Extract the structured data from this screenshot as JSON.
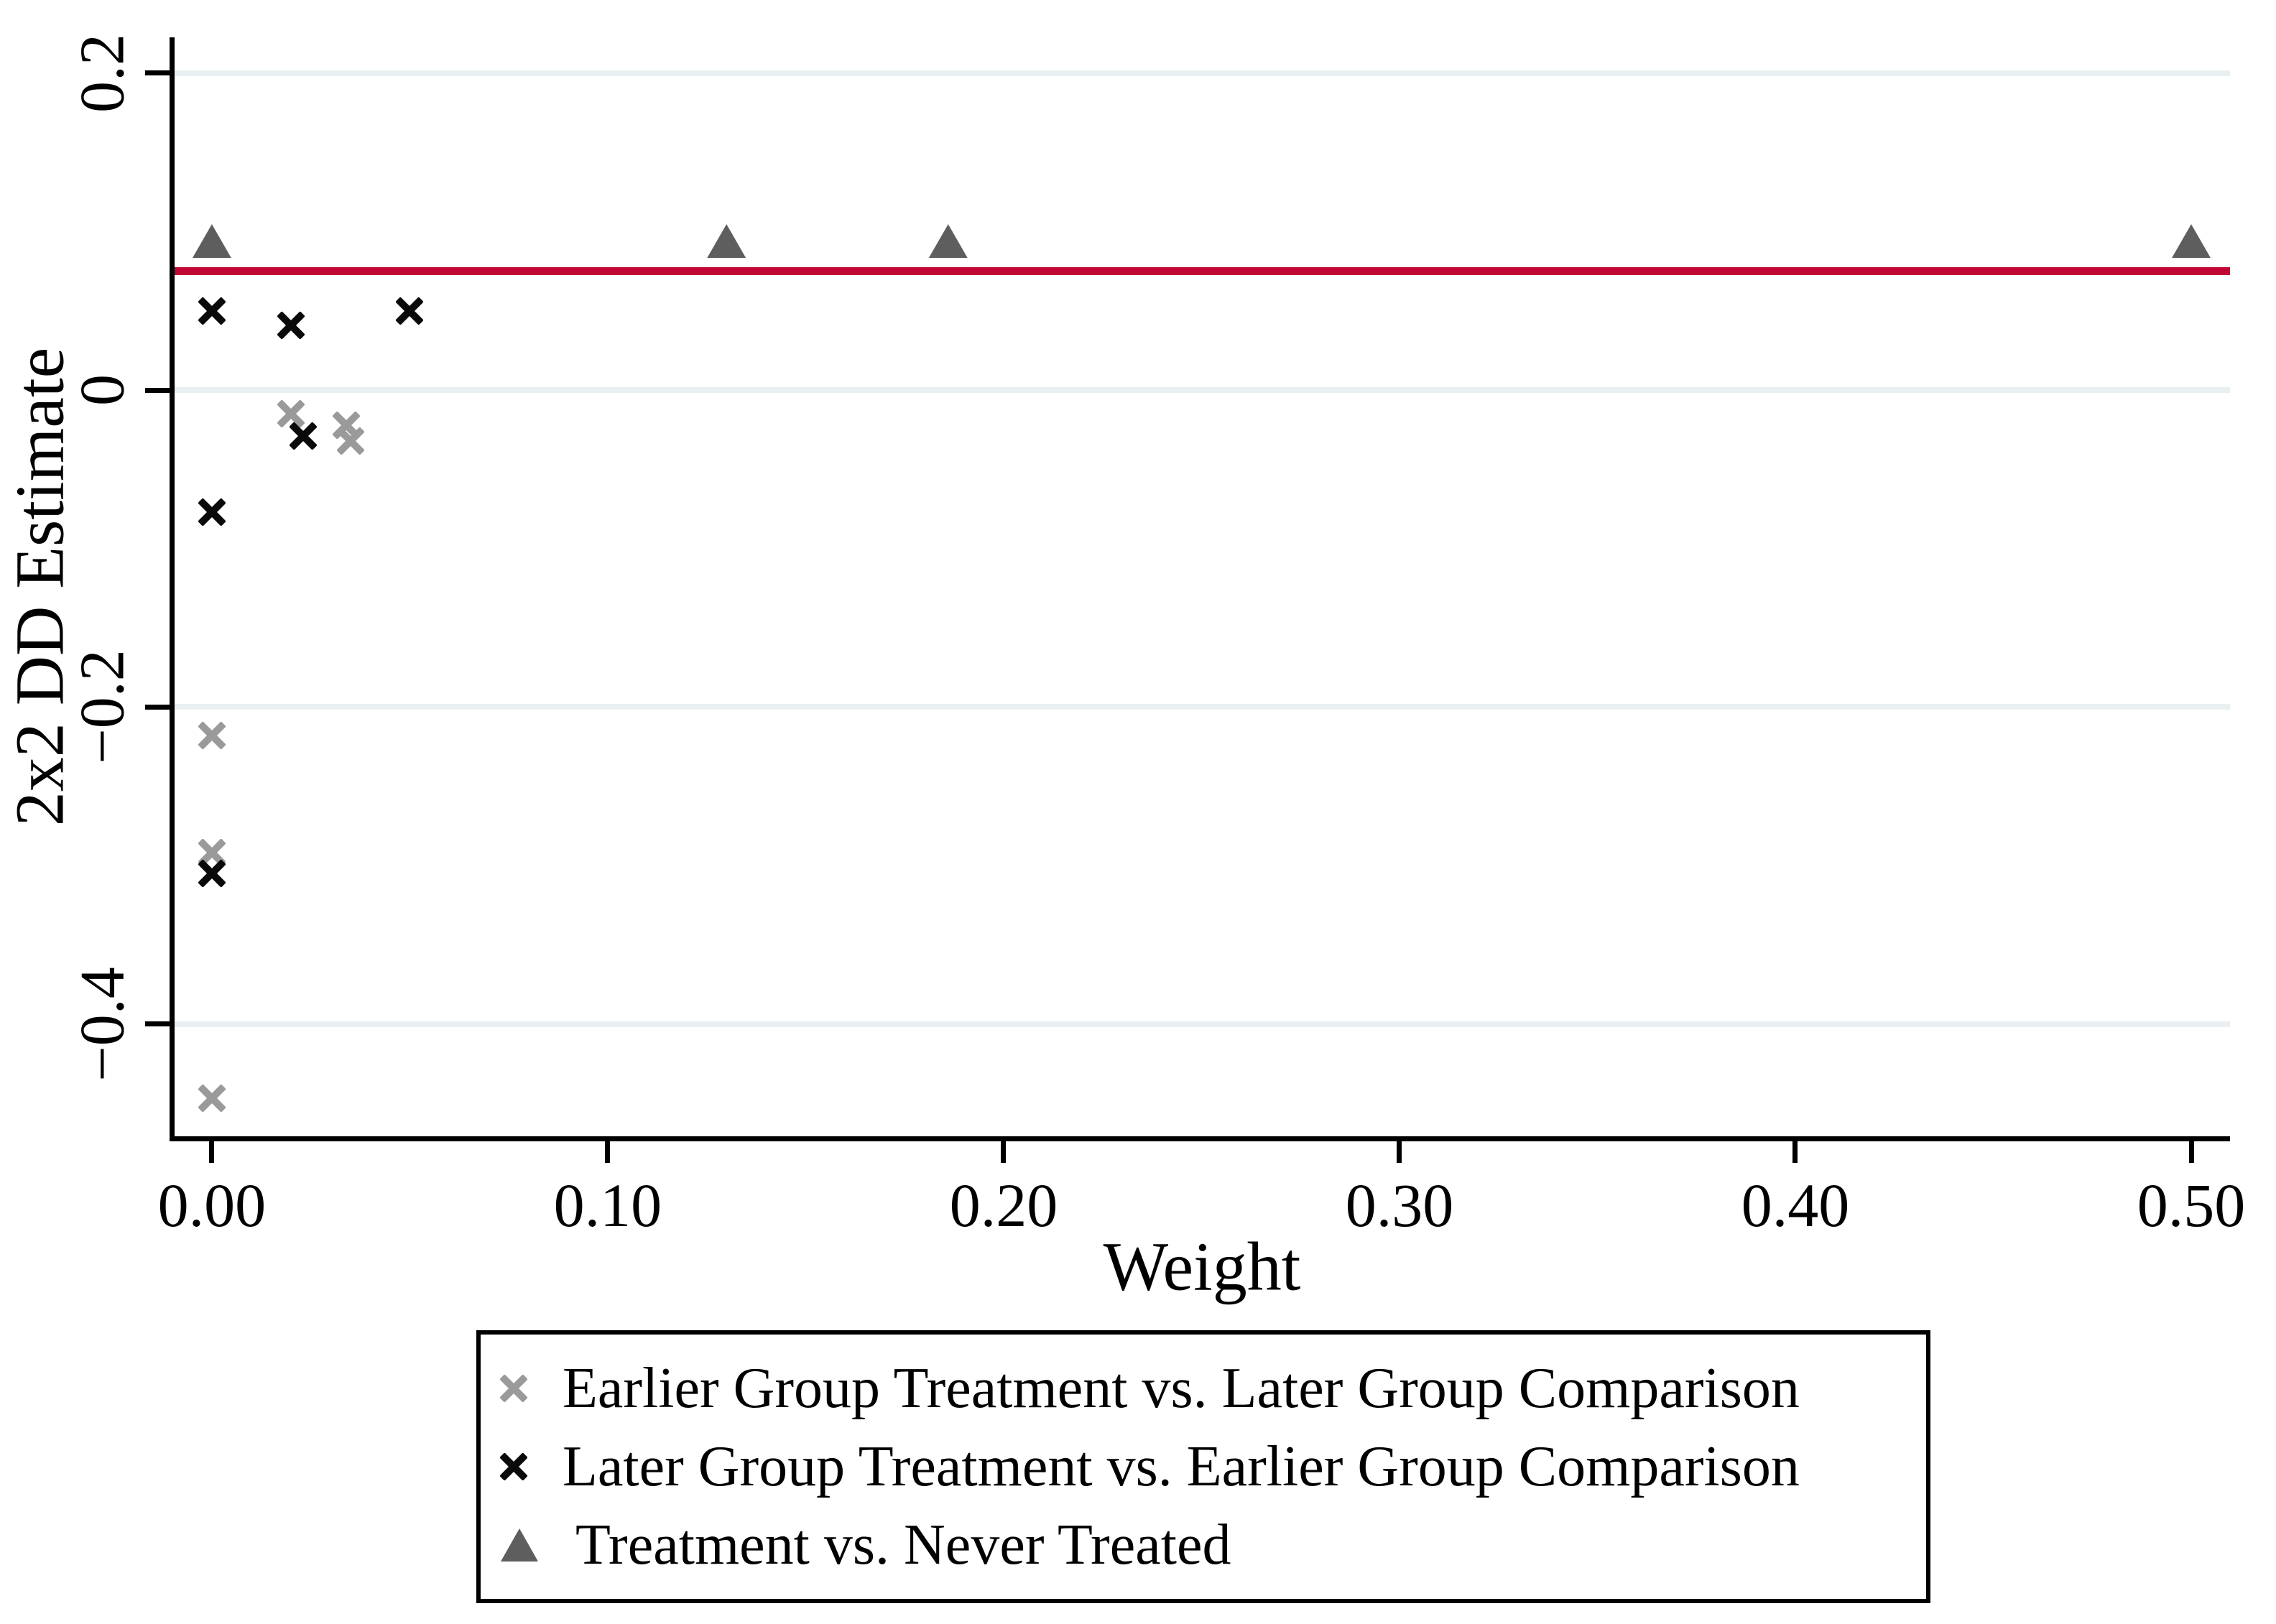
{
  "colors": {
    "background": "#ffffff",
    "gridline": "#e9f0f2",
    "axis": "#000000",
    "reference_line": "#c10534",
    "earlier_vs_later": "#9a9a9a",
    "later_vs_earlier": "#0a0a0a",
    "treatment_vs_never": "#5e5e5e"
  },
  "chart_data": {
    "type": "scatter",
    "title": "",
    "xlabel": "Weight",
    "ylabel": "2x2 DD Estimate",
    "xlim": [
      -0.0096,
      0.5098
    ],
    "ylim": [
      -0.4708,
      0.2225
    ],
    "grid": true,
    "legend_position": "bottom",
    "x_ticks": [
      {
        "value": 0.0,
        "label": "0.00"
      },
      {
        "value": 0.1,
        "label": "0.10"
      },
      {
        "value": 0.2,
        "label": "0.20"
      },
      {
        "value": 0.3,
        "label": "0.30"
      },
      {
        "value": 0.4,
        "label": "0.40"
      },
      {
        "value": 0.5,
        "label": "0.50"
      }
    ],
    "y_ticks": [
      {
        "value": 0.2,
        "label": "0.2"
      },
      {
        "value": 0.0,
        "label": "0"
      },
      {
        "value": -0.2,
        "label": "-0.2"
      },
      {
        "value": -0.4,
        "label": "-0.4"
      }
    ],
    "reference_line": {
      "value": 0.075,
      "color": "#c10534"
    },
    "series": [
      {
        "name": "Earlier Group Treatment vs. Later Group Comparison",
        "marker": "x",
        "color": "#9a9a9a",
        "points": [
          {
            "x": 0.02,
            "y": -0.015
          },
          {
            "x": 0.034,
            "y": -0.022
          },
          {
            "x": 0.035,
            "y": -0.032
          },
          {
            "x": 0.0,
            "y": -0.218
          },
          {
            "x": 0.0,
            "y": -0.292
          },
          {
            "x": 0.0,
            "y": -0.447
          }
        ]
      },
      {
        "name": "Later Group Treatment vs. Earlier Group Comparison",
        "marker": "x",
        "color": "#0a0a0a",
        "points": [
          {
            "x": 0.0,
            "y": 0.05
          },
          {
            "x": 0.02,
            "y": 0.041
          },
          {
            "x": 0.05,
            "y": 0.05
          },
          {
            "x": 0.023,
            "y": -0.029
          },
          {
            "x": 0.0,
            "y": -0.077
          },
          {
            "x": 0.0,
            "y": -0.305
          }
        ]
      },
      {
        "name": "Treatment vs. Never Treated",
        "marker": "triangle",
        "color": "#5e5e5e",
        "points": [
          {
            "x": 0.0,
            "y": 0.094
          },
          {
            "x": 0.13,
            "y": 0.094
          },
          {
            "x": 0.186,
            "y": 0.094
          },
          {
            "x": 0.5,
            "y": 0.094
          }
        ]
      }
    ]
  }
}
